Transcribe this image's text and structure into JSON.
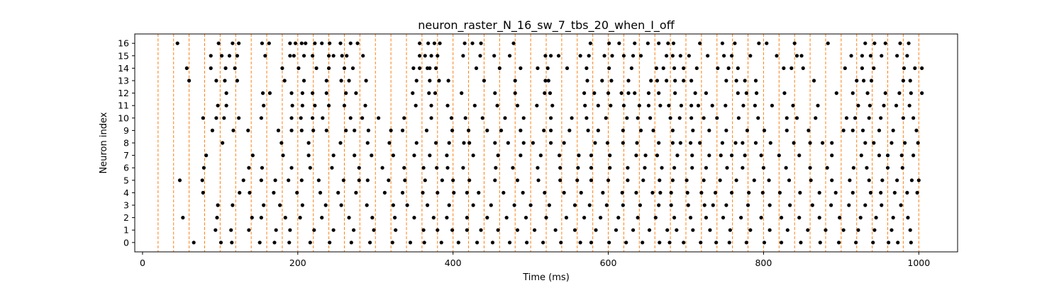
{
  "chart_data": {
    "type": "scatter",
    "title": "neuron_raster_N_16_sw_7_tbs_20_when_I_off",
    "xlabel": "Time (ms)",
    "ylabel": "Neuron index",
    "xlim": [
      -10,
      1050
    ],
    "ylim": [
      -0.75,
      16.75
    ],
    "xticks": [
      0,
      200,
      400,
      600,
      800,
      1000
    ],
    "yticks": [
      0,
      1,
      2,
      3,
      4,
      5,
      6,
      7,
      8,
      9,
      10,
      11,
      12,
      13,
      14,
      15,
      16
    ],
    "grid": false,
    "legend": "none",
    "marker_color": "#000000",
    "vline_color": "#ff7f0e",
    "vlines_x": [
      20,
      40,
      60,
      80,
      100,
      120,
      140,
      160,
      180,
      200,
      220,
      240,
      260,
      280,
      300,
      320,
      340,
      360,
      380,
      400,
      420,
      440,
      460,
      480,
      500,
      520,
      540,
      560,
      580,
      600,
      620,
      640,
      660,
      680,
      700,
      720,
      740,
      760,
      780,
      800,
      820,
      840,
      860,
      880,
      900,
      920,
      940,
      960,
      980,
      1000
    ],
    "spikes": [
      {
        "neuron": 16,
        "times": [
          45,
          98,
          116,
          124,
          154,
          163,
          190,
          197,
          205,
          210,
          222,
          231,
          241,
          255,
          268,
          277,
          357,
          368,
          376,
          383,
          415,
          425,
          436,
          478,
          577,
          601,
          614,
          634,
          651,
          665,
          677,
          684,
          718,
          747,
          763,
          794,
          804,
          840,
          883,
          931,
          943,
          957,
          976,
          987
        ]
      },
      {
        "neuron": 15,
        "times": [
          88,
          102,
          112,
          122,
          158,
          190,
          195,
          208,
          219,
          240,
          246,
          257,
          263,
          284,
          357,
          364,
          372,
          380,
          413,
          435,
          453,
          473,
          519,
          526,
          536,
          564,
          575,
          595,
          605,
          620,
          632,
          642,
          675,
          683,
          693,
          704,
          728,
          749,
          759,
          783,
          817,
          843,
          849,
          913,
          927,
          938,
          952,
          972,
          985
        ]
      },
      {
        "neuron": 14,
        "times": [
          57,
          88,
          107,
          119,
          180,
          201,
          224,
          240,
          260,
          271,
          349,
          357,
          367,
          370,
          378,
          430,
          460,
          487,
          509,
          522,
          547,
          572,
          601,
          630,
          662,
          671,
          685,
          697,
          714,
          741,
          755,
          767,
          826,
          836,
          851,
          905,
          927,
          942,
          981,
          995,
          1004
        ]
      },
      {
        "neuron": 13,
        "times": [
          60,
          95,
          106,
          122,
          183,
          208,
          237,
          256,
          266,
          288,
          353,
          370,
          382,
          394,
          440,
          480,
          519,
          523,
          573,
          592,
          604,
          626,
          655,
          663,
          675,
          686,
          697,
          707,
          752,
          765,
          776,
          790,
          865,
          920,
          929,
          939,
          980,
          989
        ]
      },
      {
        "neuron": 12,
        "times": [
          108,
          155,
          164,
          192,
          206,
          219,
          237,
          262,
          275,
          348,
          369,
          377,
          411,
          454,
          480,
          518,
          525,
          569,
          582,
          600,
          617,
          626,
          634,
          652,
          665,
          686,
          712,
          726,
          767,
          778,
          791,
          827,
          894,
          915,
          934,
          957,
          975,
          990,
          1004
        ]
      },
      {
        "neuron": 11,
        "times": [
          97,
          108,
          156,
          193,
          206,
          222,
          240,
          260,
          287,
          352,
          372,
          393,
          428,
          457,
          483,
          508,
          528,
          570,
          587,
          603,
          620,
          640,
          652,
          667,
          678,
          694,
          707,
          716,
          734,
          751,
          774,
          789,
          811,
          838,
          870,
          922,
          937,
          955,
          971,
          988
        ]
      },
      {
        "neuron": 10,
        "times": [
          78,
          95,
          105,
          124,
          153,
          192,
          204,
          219,
          232,
          268,
          283,
          304,
          337,
          372,
          398,
          416,
          438,
          467,
          491,
          526,
          553,
          572,
          597,
          624,
          638,
          654,
          680,
          692,
          707,
          723,
          740,
          768,
          793,
          830,
          843,
          867,
          907,
          918,
          936,
          951,
          980,
          993
        ]
      },
      {
        "neuron": 9,
        "times": [
          90,
          117,
          136,
          175,
          192,
          205,
          220,
          237,
          262,
          273,
          291,
          320,
          335,
          366,
          399,
          420,
          444,
          462,
          487,
          517,
          526,
          550,
          574,
          587,
          619,
          642,
          658,
          683,
          709,
          730,
          752,
          779,
          801,
          830,
          858,
          903,
          915,
          928,
          949,
          967,
          997
        ]
      },
      {
        "neuron": 8,
        "times": [
          103,
          179,
          214,
          255,
          290,
          318,
          353,
          378,
          395,
          414,
          421,
          454,
          471,
          491,
          503,
          526,
          543,
          583,
          599,
          619,
          637,
          665,
          683,
          693,
          706,
          718,
          747,
          764,
          773,
          790,
          809,
          839,
          860,
          876,
          888,
          931,
          942,
          965,
          982,
          999
        ]
      },
      {
        "neuron": 7,
        "times": [
          82,
          142,
          181,
          214,
          246,
          273,
          295,
          323,
          350,
          370,
          392,
          426,
          458,
          487,
          513,
          537,
          562,
          578,
          602,
          636,
          648,
          663,
          689,
          708,
          730,
          745,
          759,
          776,
          797,
          820,
          846,
          888,
          926,
          949,
          960,
          978,
          993
        ]
      },
      {
        "neuron": 6,
        "times": [
          79,
          137,
          154,
          192,
          216,
          244,
          279,
          309,
          337,
          362,
          379,
          393,
          413,
          455,
          477,
          509,
          538,
          561,
          578,
          602,
          625,
          647,
          669,
          685,
          708,
          726,
          753,
          773,
          800,
          829,
          860,
          882,
          916,
          933,
          960,
          979
        ]
      },
      {
        "neuron": 5,
        "times": [
          48,
          77,
          130,
          153,
          171,
          188,
          205,
          227,
          259,
          279,
          290,
          317,
          338,
          364,
          386,
          400,
          421,
          454,
          483,
          510,
          538,
          560,
          578,
          600,
          625,
          645,
          666,
          683,
          701,
          723,
          744,
          765,
          788,
          807,
          833,
          861,
          888,
          911,
          936,
          953,
          972,
          991,
          1000
        ]
      },
      {
        "neuron": 4,
        "times": [
          78,
          125,
          138,
          169,
          199,
          229,
          252,
          275,
          312,
          335,
          361,
          380,
          401,
          418,
          433,
          465,
          490,
          518,
          543,
          565,
          593,
          618,
          636,
          657,
          667,
          681,
          702,
          720,
          738,
          759,
          781,
          799,
          821,
          847,
          872,
          893,
          915,
          938,
          951,
          969,
          985,
          998
        ]
      },
      {
        "neuron": 3,
        "times": [
          97,
          116,
          156,
          177,
          206,
          236,
          256,
          289,
          323,
          341,
          367,
          395,
          426,
          449,
          479,
          500,
          524,
          557,
          576,
          598,
          619,
          641,
          665,
          681,
          703,
          724,
          735,
          752,
          780,
          808,
          834,
          863,
          887,
          910,
          931,
          952,
          977
        ]
      },
      {
        "neuron": 2,
        "times": [
          52,
          96,
          141,
          153,
          184,
          203,
          231,
          266,
          296,
          325,
          350,
          375,
          392,
          418,
          444,
          469,
          494,
          520,
          546,
          569,
          590,
          613,
          638,
          661,
          685,
          706,
          726,
          748,
          771,
          797,
          823,
          846,
          872,
          898,
          925,
          945,
          967,
          986
        ]
      },
      {
        "neuron": 1,
        "times": [
          94,
          114,
          137,
          172,
          190,
          221,
          246,
          272,
          298,
          326,
          362,
          380,
          399,
          418,
          436,
          458,
          483,
          505,
          532,
          557,
          584,
          610,
          632,
          653,
          676,
          688,
          709,
          731,
          757,
          783,
          808,
          831,
          857,
          880,
          903,
          922,
          943,
          965,
          989
        ]
      },
      {
        "neuron": 0,
        "times": [
          66,
          101,
          115,
          151,
          170,
          189,
          216,
          241,
          269,
          293,
          322,
          345,
          363,
          385,
          407,
          431,
          451,
          473,
          495,
          516,
          539,
          564,
          578,
          601,
          623,
          644,
          666,
          679,
          697,
          719,
          739,
          756,
          778,
          801,
          823,
          848,
          873,
          897,
          919,
          941,
          961,
          973,
          990
        ]
      }
    ]
  }
}
